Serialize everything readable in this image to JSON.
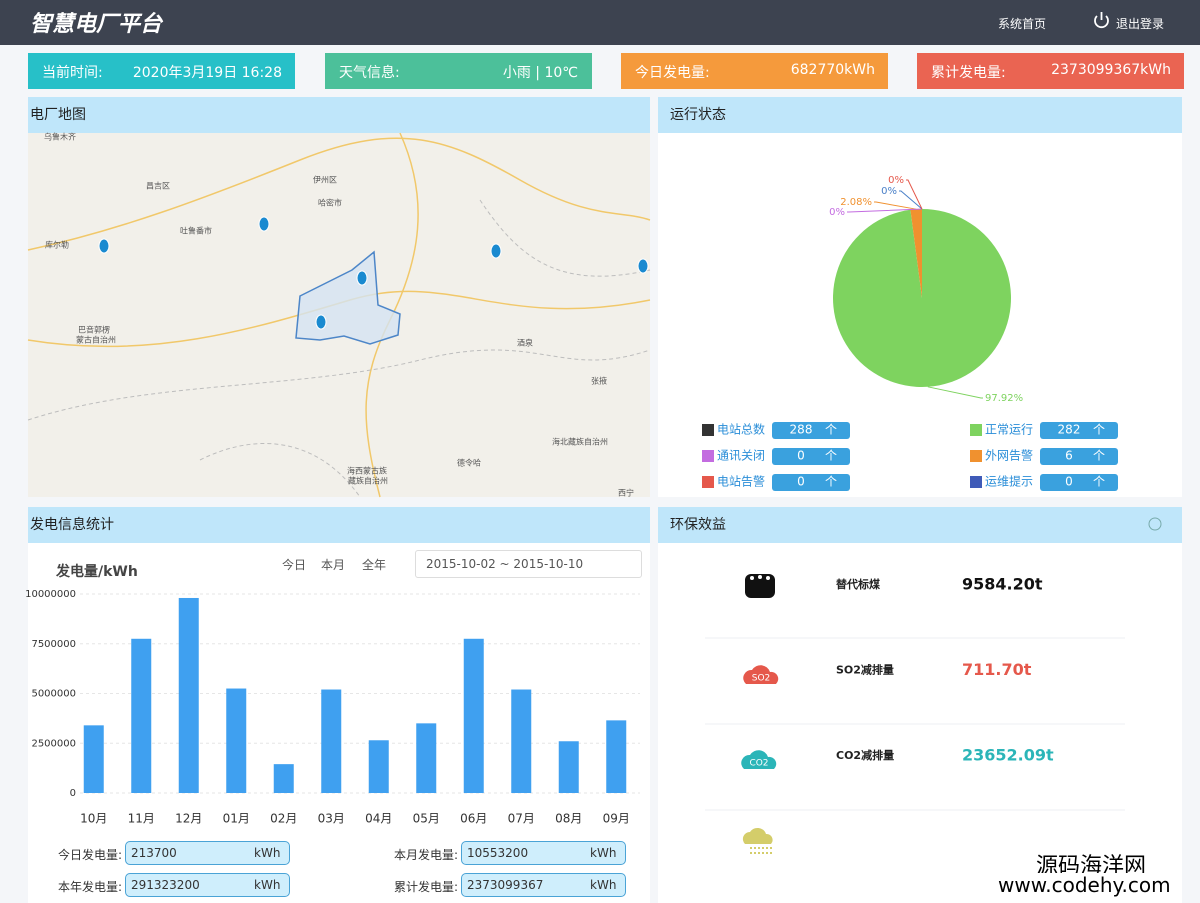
{
  "header": {
    "title": "智慧电厂平台",
    "nav": [
      "系统首页",
      "退出登录"
    ]
  },
  "stats": [
    {
      "label": "当前时间:",
      "value": "2020年3月19日 16:28"
    },
    {
      "label": "天气信息:",
      "value": "小雨 | 10℃"
    },
    {
      "label": "今日发电量:",
      "value": "682770kWh"
    },
    {
      "label": "累计发电量:",
      "value": "2373099367kWh"
    }
  ],
  "map": {
    "title": "电厂地图",
    "places": [
      "乌鲁木齐",
      "昌吉区",
      "伊州区",
      "哈密市",
      "吐鲁番市",
      "库尔勒",
      "巴音郭楞",
      "蒙古自治州",
      "酒泉",
      "张掖",
      "海北藏族自治州",
      "海西蒙古族",
      "藏族自治州",
      "德令哈",
      "西宁"
    ]
  },
  "status": {
    "title": "运行状态",
    "unit": "个",
    "items": [
      {
        "name": "电站总数",
        "count": 288,
        "color": "#333333"
      },
      {
        "name": "正常运行",
        "count": 282,
        "color": "#7ed35f"
      },
      {
        "name": "通讯关闭",
        "count": 0,
        "color": "#c36ce0"
      },
      {
        "name": "外网告警",
        "count": 6,
        "color": "#f0912f"
      },
      {
        "name": "电站告警",
        "count": 0,
        "color": "#e5584b"
      },
      {
        "name": "运维提示",
        "count": 0,
        "color": "#3f5bb8"
      }
    ]
  },
  "chart_data": [
    {
      "type": "pie",
      "values": [
        97.92,
        2.08,
        0,
        0,
        0
      ],
      "value_labels": [
        "97.92%",
        "2.08%",
        "0%",
        "0%",
        "0%"
      ],
      "colors": [
        "#7ed35f",
        "#f0912f",
        "#c36ce0",
        "#4a80c8",
        "#e5584b"
      ]
    },
    {
      "type": "bar",
      "title": "发电量/kWh",
      "categories": [
        "10月",
        "11月",
        "12月",
        "01月",
        "02月",
        "03月",
        "04月",
        "05月",
        "06月",
        "07月",
        "08月",
        "09月"
      ],
      "values": [
        3400000,
        7750000,
        9800000,
        5250000,
        1450000,
        5200000,
        2650000,
        3500000,
        7750000,
        5200000,
        2600000,
        3650000
      ],
      "color": "#3fa0f0",
      "ylim": [
        0,
        10000000
      ],
      "yticks": [
        0,
        2500000,
        5000000,
        7500000,
        10000000
      ],
      "grid": true
    }
  ],
  "generation": {
    "title": "发电信息统计",
    "tabs": [
      "今日",
      "本月",
      "全年"
    ],
    "date_range": "2015-10-02 ~ 2015-10-10",
    "fields": [
      {
        "label": "今日发电量:",
        "value": "213700",
        "unit": "kWh"
      },
      {
        "label": "本月发电量:",
        "value": "10553200",
        "unit": "kWh"
      },
      {
        "label": "本年发电量:",
        "value": "291323200",
        "unit": "kWh"
      },
      {
        "label": "累计发电量:",
        "value": "2373099367",
        "unit": "kWh"
      }
    ]
  },
  "eco": {
    "title": "环保效益",
    "items": [
      {
        "name": "替代标煤",
        "value": "9584.20t",
        "color": "#111111"
      },
      {
        "name": "SO2减排量",
        "value": "711.70t",
        "color": "#e5584b"
      },
      {
        "name": "CO2减排量",
        "value": "23652.09t",
        "color": "#2bb5b8"
      }
    ]
  },
  "watermark": [
    "源码海洋网",
    "www.codehy.com"
  ]
}
